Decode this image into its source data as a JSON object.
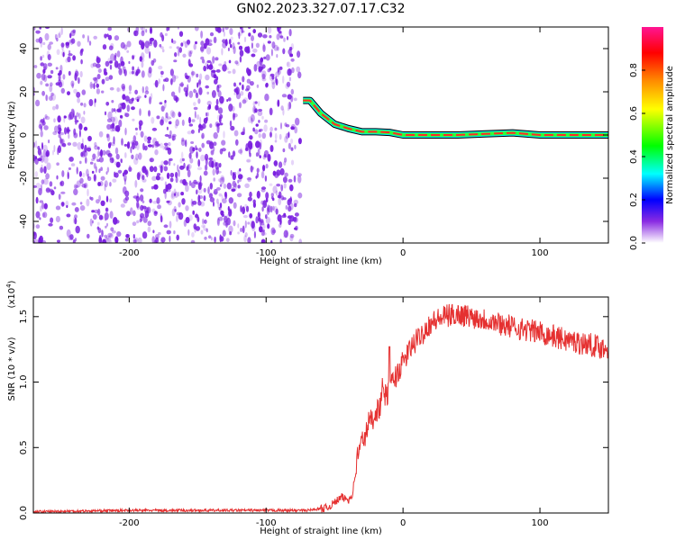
{
  "title": "GN02.2023.327.07.17.C32",
  "colors": {
    "noise": "#7a1fe0",
    "snr_line": "#e53030",
    "colorbar": [
      "#ff1493",
      "#ff0000",
      "#ff8c00",
      "#ffff00",
      "#00ff00",
      "#00ffff",
      "#0000ff",
      "#8a2be2",
      "#ffffff"
    ]
  },
  "chart_data": [
    {
      "type": "heatmap",
      "xlabel": "Height of straight line (km)",
      "ylabel": "Frequency (Hz)",
      "xlim": [
        -270,
        150
      ],
      "ylim": [
        -50,
        50
      ],
      "xticks": [
        -200,
        -100,
        0,
        100
      ],
      "yticks": [
        -40,
        -20,
        0,
        20,
        40
      ],
      "xtick_labels": [
        "-200",
        "-100",
        "0",
        "100"
      ],
      "ytick_labels": [
        "-40",
        "-20",
        "0",
        "20",
        "40"
      ],
      "noise_region_x": [
        -270,
        -75
      ],
      "signal_track": {
        "x": [
          -73,
          -68,
          -60,
          -50,
          -40,
          -30,
          -20,
          -10,
          0,
          20,
          40,
          60,
          80,
          100,
          120,
          150
        ],
        "y": [
          16,
          16,
          10,
          5,
          3,
          1.5,
          1.5,
          1.2,
          0,
          0,
          0,
          0.5,
          1,
          0,
          0,
          0
        ]
      },
      "colorbar": {
        "label": "Normalized spectral amplitude",
        "range": [
          0,
          1
        ],
        "ticks": [
          0.0,
          0.2,
          0.4,
          0.6,
          0.8
        ],
        "tick_labels": [
          "0.0",
          "0.2",
          "0.4",
          "0.6",
          "0.8"
        ]
      }
    },
    {
      "type": "line",
      "xlabel": "Height of straight line (km)",
      "ylabel": "SNR (10 * v/v)",
      "y_multiplier": "(x10",
      "y_multiplier_exp": "4",
      "y_multiplier_close": ")",
      "xlim": [
        -270,
        150
      ],
      "ylim": [
        0,
        1.65
      ],
      "xticks": [
        -200,
        -100,
        0,
        100
      ],
      "yticks": [
        0.0,
        0.5,
        1.0,
        1.5
      ],
      "xtick_labels": [
        "-200",
        "-100",
        "0",
        "100"
      ],
      "ytick_labels": [
        "0.0",
        "0.5",
        "1.0",
        "1.5"
      ],
      "series": [
        {
          "x": [
            -270,
            -200,
            -150,
            -100,
            -70,
            -55,
            -45,
            -40,
            -37,
            -33,
            -30,
            -27,
            -25,
            -22,
            -20,
            -17,
            -15,
            -12,
            -10,
            -5,
            0,
            5,
            10,
            20,
            30,
            40,
            50,
            60,
            70,
            80,
            90,
            100,
            110,
            120,
            130,
            140,
            150
          ],
          "y": [
            0.01,
            0.02,
            0.02,
            0.02,
            0.02,
            0.04,
            0.12,
            0.1,
            0.14,
            0.45,
            0.55,
            0.6,
            0.7,
            0.72,
            0.78,
            0.8,
            0.95,
            0.88,
            0.95,
            1.05,
            1.15,
            1.25,
            1.32,
            1.45,
            1.5,
            1.52,
            1.5,
            1.48,
            1.45,
            1.42,
            1.4,
            1.38,
            1.35,
            1.32,
            1.3,
            1.28,
            1.25
          ]
        }
      ]
    }
  ]
}
